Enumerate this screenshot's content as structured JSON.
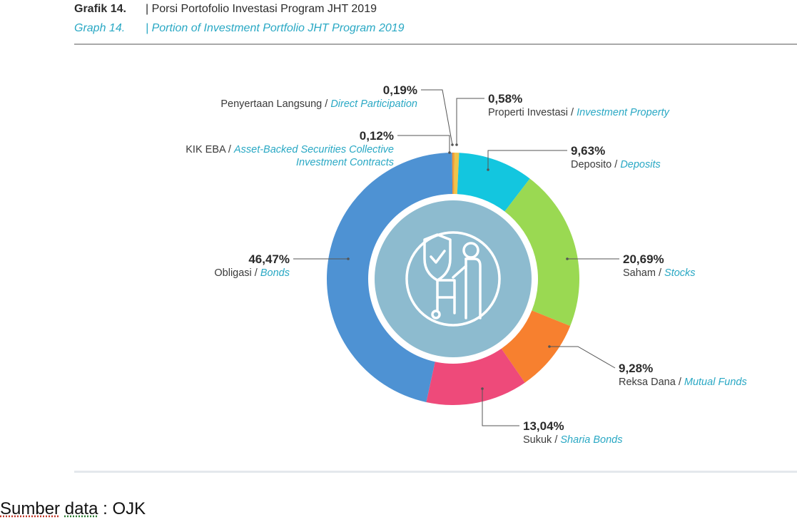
{
  "header": {
    "id_number": "Grafik 14.",
    "id_title": "| Porsi Portofolio Investasi Program JHT 2019",
    "en_number": "Graph 14.",
    "en_title": "| Portion of Investment Portfolio JHT Program 2019"
  },
  "source": {
    "word1": "Sumber",
    "word2": "data",
    "rest": " : OJK"
  },
  "chart_data": {
    "type": "donut",
    "title": "",
    "center_icon": "elderly-person-with-shield-icon",
    "colors": {
      "center": "#8dbbcf",
      "icon_stroke": "#ffffff",
      "leader": "#555555",
      "label_en": "#29a8c4"
    },
    "legend_placement": "labels-around-ring",
    "series": [
      {
        "pct": "0,19%",
        "value": 0.19,
        "label_id": "Penyertaan Langsung / ",
        "label_en": [
          "Direct Participation"
        ],
        "color": "#f2a33a"
      },
      {
        "pct": "0,58%",
        "value": 0.58,
        "label_id": "Properti Investasi / ",
        "label_en": [
          "Investment Property"
        ],
        "color": "#eec54a"
      },
      {
        "pct": "9,63%",
        "value": 9.63,
        "label_id": "Deposito / ",
        "label_en": [
          "Deposits"
        ],
        "color": "#13c6df"
      },
      {
        "pct": "20,69%",
        "value": 20.69,
        "label_id": "Saham / ",
        "label_en": [
          "Stocks"
        ],
        "color": "#9ad952"
      },
      {
        "pct": "9,28%",
        "value": 9.28,
        "label_id": "Reksa Dana / ",
        "label_en": [
          "Mutual Funds"
        ],
        "color": "#f7802f"
      },
      {
        "pct": "13,04%",
        "value": 13.04,
        "label_id": "Sukuk / ",
        "label_en": [
          "Sharia Bonds"
        ],
        "color": "#ee4a7a"
      },
      {
        "pct": "46,47%",
        "value": 46.47,
        "label_id": "Obligasi / ",
        "label_en": [
          "Bonds"
        ],
        "color": "#4e92d3"
      },
      {
        "pct": "0,12%",
        "value": 0.12,
        "label_id": "KIK EBA / ",
        "label_en": [
          "Asset-Backed Securities Collective",
          "Investment Contracts"
        ],
        "color": "#e88d33"
      }
    ]
  }
}
